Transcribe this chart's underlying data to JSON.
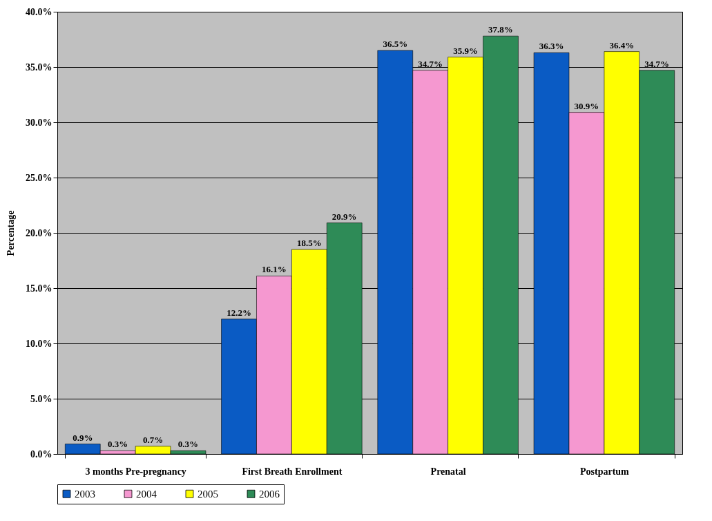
{
  "chart_data": {
    "type": "bar",
    "ylabel": "Percentage",
    "categories": [
      "3 months Pre-pregnancy",
      "First Breath Enrollment",
      "Prenatal",
      "Postpartum"
    ],
    "series": [
      {
        "name": "2003",
        "color": "#0a5bc4",
        "values": [
          0.9,
          12.2,
          36.5,
          36.3
        ],
        "value_labels": [
          "0.9%",
          "12.2%",
          "36.5%",
          "36.3%"
        ]
      },
      {
        "name": "2004",
        "color": "#f598d0",
        "values": [
          0.3,
          16.1,
          34.7,
          30.9
        ],
        "value_labels": [
          "0.3%",
          "16.1%",
          "34.7%",
          "30.9%"
        ]
      },
      {
        "name": "2005",
        "color": "#ffff00",
        "values": [
          0.7,
          18.5,
          35.9,
          36.4
        ],
        "value_labels": [
          "0.7%",
          "18.5%",
          "35.9%",
          "36.4%"
        ]
      },
      {
        "name": "2006",
        "color": "#2e8b57",
        "values": [
          0.3,
          20.9,
          37.8,
          34.7
        ],
        "value_labels": [
          "0.3%",
          "20.9%",
          "37.8%",
          "34.7%"
        ]
      }
    ],
    "ylim": [
      0,
      40
    ],
    "yticks": [
      {
        "value": 0,
        "label": "0.0%"
      },
      {
        "value": 5,
        "label": "5.0%"
      },
      {
        "value": 10,
        "label": "10.0%"
      },
      {
        "value": 15,
        "label": "15.0%"
      },
      {
        "value": 20,
        "label": "20.0%"
      },
      {
        "value": 25,
        "label": "25.0%"
      },
      {
        "value": 30,
        "label": "30.0%"
      },
      {
        "value": 35,
        "label": "35.0%"
      },
      {
        "value": 40,
        "label": "40.0%"
      }
    ],
    "grid": "y",
    "legend": "bottom"
  }
}
